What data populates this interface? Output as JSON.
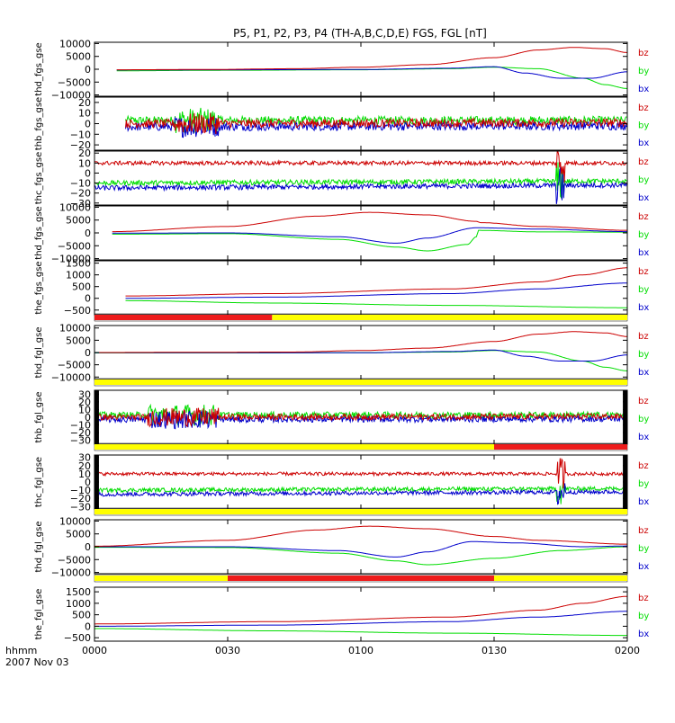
{
  "title": "P5, P1, P2, P3, P4 (TH-A,B,C,D,E) FGS, FGL [nT]",
  "footer": {
    "time_label": "hhmm",
    "date_label": "2007 Nov 03"
  },
  "x_axis": {
    "range": [
      0,
      120
    ],
    "ticks": [
      {
        "v": 0,
        "label": "0000"
      },
      {
        "v": 30,
        "label": "0030"
      },
      {
        "v": 60,
        "label": "0100"
      },
      {
        "v": 90,
        "label": "0130"
      },
      {
        "v": 120,
        "label": "0200"
      }
    ]
  },
  "colors": {
    "bz": "#cc0000",
    "by": "#00dd00",
    "bx": "#0000cc",
    "red_bar": "#ee1c1c",
    "yellow_bar": "#ffff00",
    "black_bar": "#000000"
  },
  "chart_data": [
    {
      "type": "line",
      "ylabel": "thd_fgs_gse",
      "yticks": [
        {
          "v": 10000,
          "label": "10000"
        },
        {
          "v": 5000,
          "label": "5000"
        },
        {
          "v": 0,
          "label": "0"
        },
        {
          "v": -5000,
          "label": "−5000"
        },
        {
          "v": -10000,
          "label": "−10000"
        }
      ],
      "ylim": [
        -10500,
        10500
      ],
      "series": [
        {
          "name": "bz",
          "kind": "smooth",
          "x": [
            5,
            25,
            45,
            60,
            75,
            90,
            100,
            108,
            115,
            120
          ],
          "y": [
            -200,
            -100,
            200,
            800,
            1800,
            4500,
            7500,
            8500,
            8000,
            6500
          ]
        },
        {
          "name": "by",
          "kind": "smooth",
          "x": [
            5,
            30,
            60,
            80,
            90,
            100,
            110,
            115,
            120
          ],
          "y": [
            -600,
            -400,
            -200,
            200,
            800,
            200,
            -3500,
            -6000,
            -7500
          ]
        },
        {
          "name": "bx",
          "kind": "smooth",
          "x": [
            5,
            30,
            60,
            80,
            90,
            97,
            105,
            112,
            120
          ],
          "y": [
            -300,
            -200,
            -100,
            400,
            1000,
            -1500,
            -3500,
            -3500,
            -1000
          ]
        }
      ]
    },
    {
      "type": "line",
      "ylabel": "thb_fgs_gse",
      "yticks": [
        {
          "v": 20,
          "label": "20"
        },
        {
          "v": 10,
          "label": "10"
        },
        {
          "v": 0,
          "label": "0"
        },
        {
          "v": -10,
          "label": "−10"
        },
        {
          "v": -20,
          "label": "−20"
        }
      ],
      "ylim": [
        -25,
        25
      ],
      "series": [
        {
          "name": "bz",
          "kind": "noise",
          "x": [
            7,
            120
          ],
          "base": [
            0,
            1
          ],
          "amp": 4,
          "burst": [
            [
              18,
              28,
              10
            ]
          ]
        },
        {
          "name": "by",
          "kind": "noise",
          "x": [
            7,
            120
          ],
          "base": [
            3,
            3
          ],
          "amp": 4,
          "burst": [
            [
              18,
              28,
              12
            ]
          ]
        },
        {
          "name": "bx",
          "kind": "noise",
          "x": [
            7,
            120
          ],
          "base": [
            -3,
            -2
          ],
          "amp": 4,
          "burst": [
            [
              18,
              28,
              10
            ]
          ]
        }
      ]
    },
    {
      "type": "line",
      "ylabel": "thc_fgs_gse",
      "yticks": [
        {
          "v": 20,
          "label": "20"
        },
        {
          "v": 10,
          "label": "10"
        },
        {
          "v": 0,
          "label": "0"
        },
        {
          "v": -10,
          "label": "−10"
        },
        {
          "v": -20,
          "label": "−20"
        },
        {
          "v": -30,
          "label": "−30"
        }
      ],
      "ylim": [
        -32,
        22
      ],
      "series": [
        {
          "name": "bz",
          "kind": "noise",
          "x": [
            0,
            120
          ],
          "base": [
            10,
            10
          ],
          "amp": 2,
          "burst": [
            [
              104,
              106,
              20
            ]
          ]
        },
        {
          "name": "by",
          "kind": "noise",
          "x": [
            0,
            120
          ],
          "base": [
            -10,
            -8
          ],
          "amp": 2.5,
          "burst": [
            [
              104,
              106,
              20
            ]
          ]
        },
        {
          "name": "bx",
          "kind": "noise",
          "x": [
            0,
            120
          ],
          "base": [
            -15,
            -12
          ],
          "amp": 2.5,
          "burst": [
            [
              104,
              106,
              20
            ]
          ]
        }
      ]
    },
    {
      "type": "line",
      "ylabel": "thd_fgs_gse",
      "yticks": [
        {
          "v": 10000,
          "label": "10000"
        },
        {
          "v": 5000,
          "label": "5000"
        },
        {
          "v": 0,
          "label": "0"
        },
        {
          "v": -5000,
          "label": "−5000"
        },
        {
          "v": -10000,
          "label": "−10000"
        }
      ],
      "ylim": [
        -10500,
        10500
      ],
      "series": [
        {
          "name": "bz",
          "kind": "smooth",
          "x": [
            4,
            30,
            50,
            62,
            75,
            86,
            87,
            100,
            120
          ],
          "y": [
            500,
            2500,
            6500,
            8000,
            7000,
            4500,
            4000,
            2500,
            1000
          ]
        },
        {
          "name": "by",
          "kind": "smooth",
          "x": [
            4,
            30,
            55,
            68,
            75,
            84,
            86,
            86.5,
            100,
            120
          ],
          "y": [
            -500,
            -300,
            -2500,
            -5500,
            -7000,
            -4500,
            -1500,
            1000,
            400,
            300
          ]
        },
        {
          "name": "bx",
          "kind": "smooth",
          "x": [
            4,
            30,
            55,
            68,
            75,
            86,
            100,
            120
          ],
          "y": [
            -100,
            0,
            -1500,
            -4000,
            -2000,
            2000,
            1500,
            500
          ]
        }
      ]
    },
    {
      "type": "line",
      "ylabel": "the_fgs_gse",
      "yticks": [
        {
          "v": 1500,
          "label": "1500"
        },
        {
          "v": 1000,
          "label": "1000"
        },
        {
          "v": 500,
          "label": "500"
        },
        {
          "v": 0,
          "label": "0"
        },
        {
          "v": -500,
          "label": "−500"
        }
      ],
      "ylim": [
        -700,
        1600
      ],
      "series": [
        {
          "name": "bz",
          "kind": "smooth",
          "x": [
            7,
            40,
            80,
            100,
            110,
            120
          ],
          "y": [
            100,
            200,
            400,
            700,
            1000,
            1300
          ]
        },
        {
          "name": "by",
          "kind": "smooth",
          "x": [
            7,
            40,
            80,
            120
          ],
          "y": [
            -100,
            -200,
            -300,
            -400
          ]
        },
        {
          "name": "bx",
          "kind": "smooth",
          "x": [
            7,
            40,
            80,
            100,
            120
          ],
          "y": [
            0,
            50,
            200,
            400,
            650
          ]
        }
      ]
    },
    {
      "type": "line",
      "ylabel": "thd_fgl_gse",
      "yticks": [
        {
          "v": 10000,
          "label": "10000"
        },
        {
          "v": 5000,
          "label": "5000"
        },
        {
          "v": 0,
          "label": "0"
        },
        {
          "v": -5000,
          "label": "−5000"
        },
        {
          "v": -10000,
          "label": "−10000"
        }
      ],
      "ylim": [
        -11000,
        11000
      ],
      "series": [
        {
          "name": "bz",
          "kind": "smooth",
          "x": [
            0,
            25,
            45,
            60,
            75,
            90,
            100,
            108,
            115,
            120
          ],
          "y": [
            0,
            100,
            200,
            800,
            1800,
            4500,
            7500,
            8500,
            8000,
            6500
          ]
        },
        {
          "name": "by",
          "kind": "smooth",
          "x": [
            0,
            30,
            60,
            80,
            90,
            100,
            110,
            115,
            120
          ],
          "y": [
            -200,
            -200,
            -100,
            200,
            800,
            200,
            -3500,
            -6000,
            -7500
          ]
        },
        {
          "name": "bx",
          "kind": "smooth",
          "x": [
            0,
            30,
            60,
            80,
            90,
            97,
            105,
            112,
            120
          ],
          "y": [
            -100,
            -100,
            -100,
            400,
            1000,
            -1500,
            -3500,
            -3500,
            -1000
          ]
        }
      ]
    },
    {
      "type": "line",
      "ylabel": "thb_fgl_gse",
      "yticks": [
        {
          "v": 30,
          "label": "30"
        },
        {
          "v": 20,
          "label": "20"
        },
        {
          "v": 10,
          "label": "10"
        },
        {
          "v": 0,
          "label": "0"
        },
        {
          "v": -10,
          "label": "−10"
        },
        {
          "v": -20,
          "label": "−20"
        },
        {
          "v": -30,
          "label": "−30"
        }
      ],
      "ylim": [
        -35,
        35
      ],
      "series": [
        {
          "name": "bz",
          "kind": "noise",
          "x": [
            0,
            120
          ],
          "base": [
            0,
            1
          ],
          "amp": 4,
          "burst": [
            [
              12,
              28,
              12
            ]
          ]
        },
        {
          "name": "by",
          "kind": "noise",
          "x": [
            0,
            120
          ],
          "base": [
            3,
            3
          ],
          "amp": 4,
          "burst": [
            [
              12,
              28,
              14
            ]
          ]
        },
        {
          "name": "bx",
          "kind": "noise",
          "x": [
            0,
            120
          ],
          "base": [
            -3,
            -2
          ],
          "amp": 4,
          "burst": [
            [
              12,
              28,
              12
            ]
          ]
        }
      ]
    },
    {
      "type": "line",
      "ylabel": "thc_fgl_gse",
      "yticks": [
        {
          "v": 30,
          "label": "30"
        },
        {
          "v": 20,
          "label": "20"
        },
        {
          "v": 10,
          "label": "10"
        },
        {
          "v": 0,
          "label": "0"
        },
        {
          "v": -10,
          "label": "−10"
        },
        {
          "v": -20,
          "label": "−20"
        },
        {
          "v": -30,
          "label": "−30"
        }
      ],
      "ylim": [
        -33,
        33
      ],
      "series": [
        {
          "name": "bz",
          "kind": "noise",
          "x": [
            1,
            120
          ],
          "base": [
            10,
            10
          ],
          "amp": 2,
          "burst": [
            [
              104,
              106,
              20
            ]
          ]
        },
        {
          "name": "by",
          "kind": "noise",
          "x": [
            1,
            120
          ],
          "base": [
            -10,
            -8
          ],
          "amp": 2.5,
          "burst": [
            [
              104,
              106,
              20
            ]
          ]
        },
        {
          "name": "bx",
          "kind": "noise",
          "x": [
            1,
            120
          ],
          "base": [
            -15,
            -12
          ],
          "amp": 2.5,
          "burst": [
            [
              104,
              106,
              20
            ]
          ]
        }
      ]
    },
    {
      "type": "line",
      "ylabel": "thd_fgl_gse",
      "yticks": [
        {
          "v": 10000,
          "label": "10000"
        },
        {
          "v": 5000,
          "label": "5000"
        },
        {
          "v": 0,
          "label": "0"
        },
        {
          "v": -5000,
          "label": "−5000"
        },
        {
          "v": -10000,
          "label": "−10000"
        }
      ],
      "ylim": [
        -10500,
        10500
      ],
      "series": [
        {
          "name": "bz",
          "kind": "smooth",
          "x": [
            0,
            30,
            50,
            62,
            75,
            90,
            100,
            120
          ],
          "y": [
            200,
            2500,
            6500,
            8000,
            7000,
            4000,
            2500,
            1000
          ]
        },
        {
          "name": "by",
          "kind": "smooth",
          "x": [
            0,
            30,
            55,
            68,
            75,
            90,
            105,
            120
          ],
          "y": [
            -200,
            -300,
            -2500,
            -5500,
            -7000,
            -4500,
            -1500,
            0
          ]
        },
        {
          "name": "bx",
          "kind": "smooth",
          "x": [
            0,
            30,
            55,
            68,
            75,
            85,
            95,
            110,
            120
          ],
          "y": [
            0,
            0,
            -1500,
            -4000,
            -2000,
            2000,
            1500,
            0,
            300
          ]
        }
      ]
    },
    {
      "type": "line",
      "ylabel": "the_fgl_gse",
      "yticks": [
        {
          "v": 1500,
          "label": "1500"
        },
        {
          "v": 1000,
          "label": "1000"
        },
        {
          "v": 500,
          "label": "500"
        },
        {
          "v": 0,
          "label": "0"
        },
        {
          "v": -500,
          "label": "−500"
        }
      ],
      "ylim": [
        -650,
        1700
      ],
      "series": [
        {
          "name": "bz",
          "kind": "smooth",
          "x": [
            0,
            40,
            80,
            100,
            110,
            120
          ],
          "y": [
            100,
            200,
            400,
            700,
            1000,
            1300
          ]
        },
        {
          "name": "by",
          "kind": "smooth",
          "x": [
            0,
            40,
            80,
            120
          ],
          "y": [
            -100,
            -200,
            -300,
            -400
          ]
        },
        {
          "name": "bx",
          "kind": "smooth",
          "x": [
            0,
            40,
            80,
            100,
            120
          ],
          "y": [
            0,
            50,
            200,
            400,
            650
          ]
        }
      ]
    }
  ],
  "mode_bars": [
    {
      "after_panel": 4,
      "segments": [
        {
          "from": 0,
          "to": 40,
          "color": "red_bar"
        },
        {
          "from": 40,
          "to": 120,
          "color": "yellow_bar"
        }
      ]
    },
    {
      "after_panel": 5,
      "segments": [
        {
          "from": 0,
          "to": 120,
          "color": "yellow_bar"
        }
      ]
    },
    {
      "after_panel": 6,
      "segments": [
        {
          "from": 0,
          "to": 90,
          "color": "yellow_bar"
        },
        {
          "from": 90,
          "to": 120,
          "color": "red_bar"
        }
      ]
    },
    {
      "after_panel": 7,
      "segments": [
        {
          "from": 0,
          "to": 120,
          "color": "yellow_bar"
        }
      ]
    },
    {
      "after_panel": 8,
      "segments": [
        {
          "from": 0,
          "to": 30,
          "color": "yellow_bar"
        },
        {
          "from": 30,
          "to": 90,
          "color": "red_bar"
        },
        {
          "from": 90,
          "to": 120,
          "color": "yellow_bar"
        }
      ]
    }
  ],
  "edge_bars": [
    {
      "panel": 6,
      "segments": [
        {
          "from": 0,
          "to": 1
        },
        {
          "from": 119,
          "to": 120
        }
      ]
    },
    {
      "panel": 7,
      "segments": [
        {
          "from": 0,
          "to": 1
        },
        {
          "from": 119,
          "to": 120
        }
      ]
    }
  ],
  "legend_labels": [
    "bz",
    "by",
    "bx"
  ]
}
